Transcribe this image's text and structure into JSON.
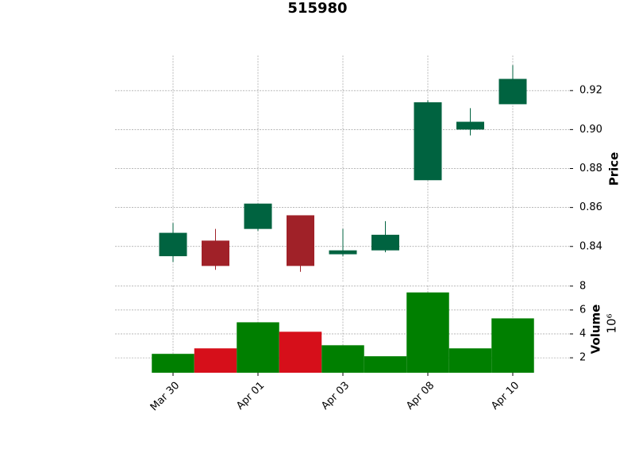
{
  "chart_data": {
    "type": "candlestick",
    "title": "515980",
    "categories": [
      "Mar 30",
      null,
      "Apr 01",
      null,
      "Apr 03",
      null,
      "Apr 08",
      null,
      "Apr 10"
    ],
    "open": [
      0.835,
      0.843,
      0.849,
      0.856,
      0.836,
      0.838,
      0.874,
      0.9,
      0.913
    ],
    "high": [
      0.852,
      0.849,
      0.862,
      0.856,
      0.849,
      0.853,
      0.915,
      0.911,
      0.933
    ],
    "low": [
      0.832,
      0.828,
      0.848,
      0.827,
      0.835,
      0.837,
      0.874,
      0.897,
      0.913
    ],
    "close": [
      0.847,
      0.83,
      0.862,
      0.83,
      0.838,
      0.846,
      0.914,
      0.904,
      0.926
    ],
    "volume": [
      2.33,
      2.79,
      4.97,
      4.18,
      3.05,
      2.13,
      7.47,
      2.79,
      5.3
    ],
    "up_color": "#006340",
    "down_color": "#a02128",
    "volume_up_color": "#007f00",
    "volume_down_color": "#d60f1a",
    "ylabel": "Price",
    "y2label": "Volume",
    "y2_multiplier": "10⁶",
    "ylim": [
      0.822,
      0.938
    ],
    "yticks": [
      0.84,
      0.86,
      0.88,
      {
        "value": 0.9,
        "label": "0.90"
      },
      0.92
    ],
    "y2lim": [
      0.75,
      8.05
    ],
    "y2ticks": [
      2,
      4,
      6,
      8
    ],
    "grid": true
  }
}
